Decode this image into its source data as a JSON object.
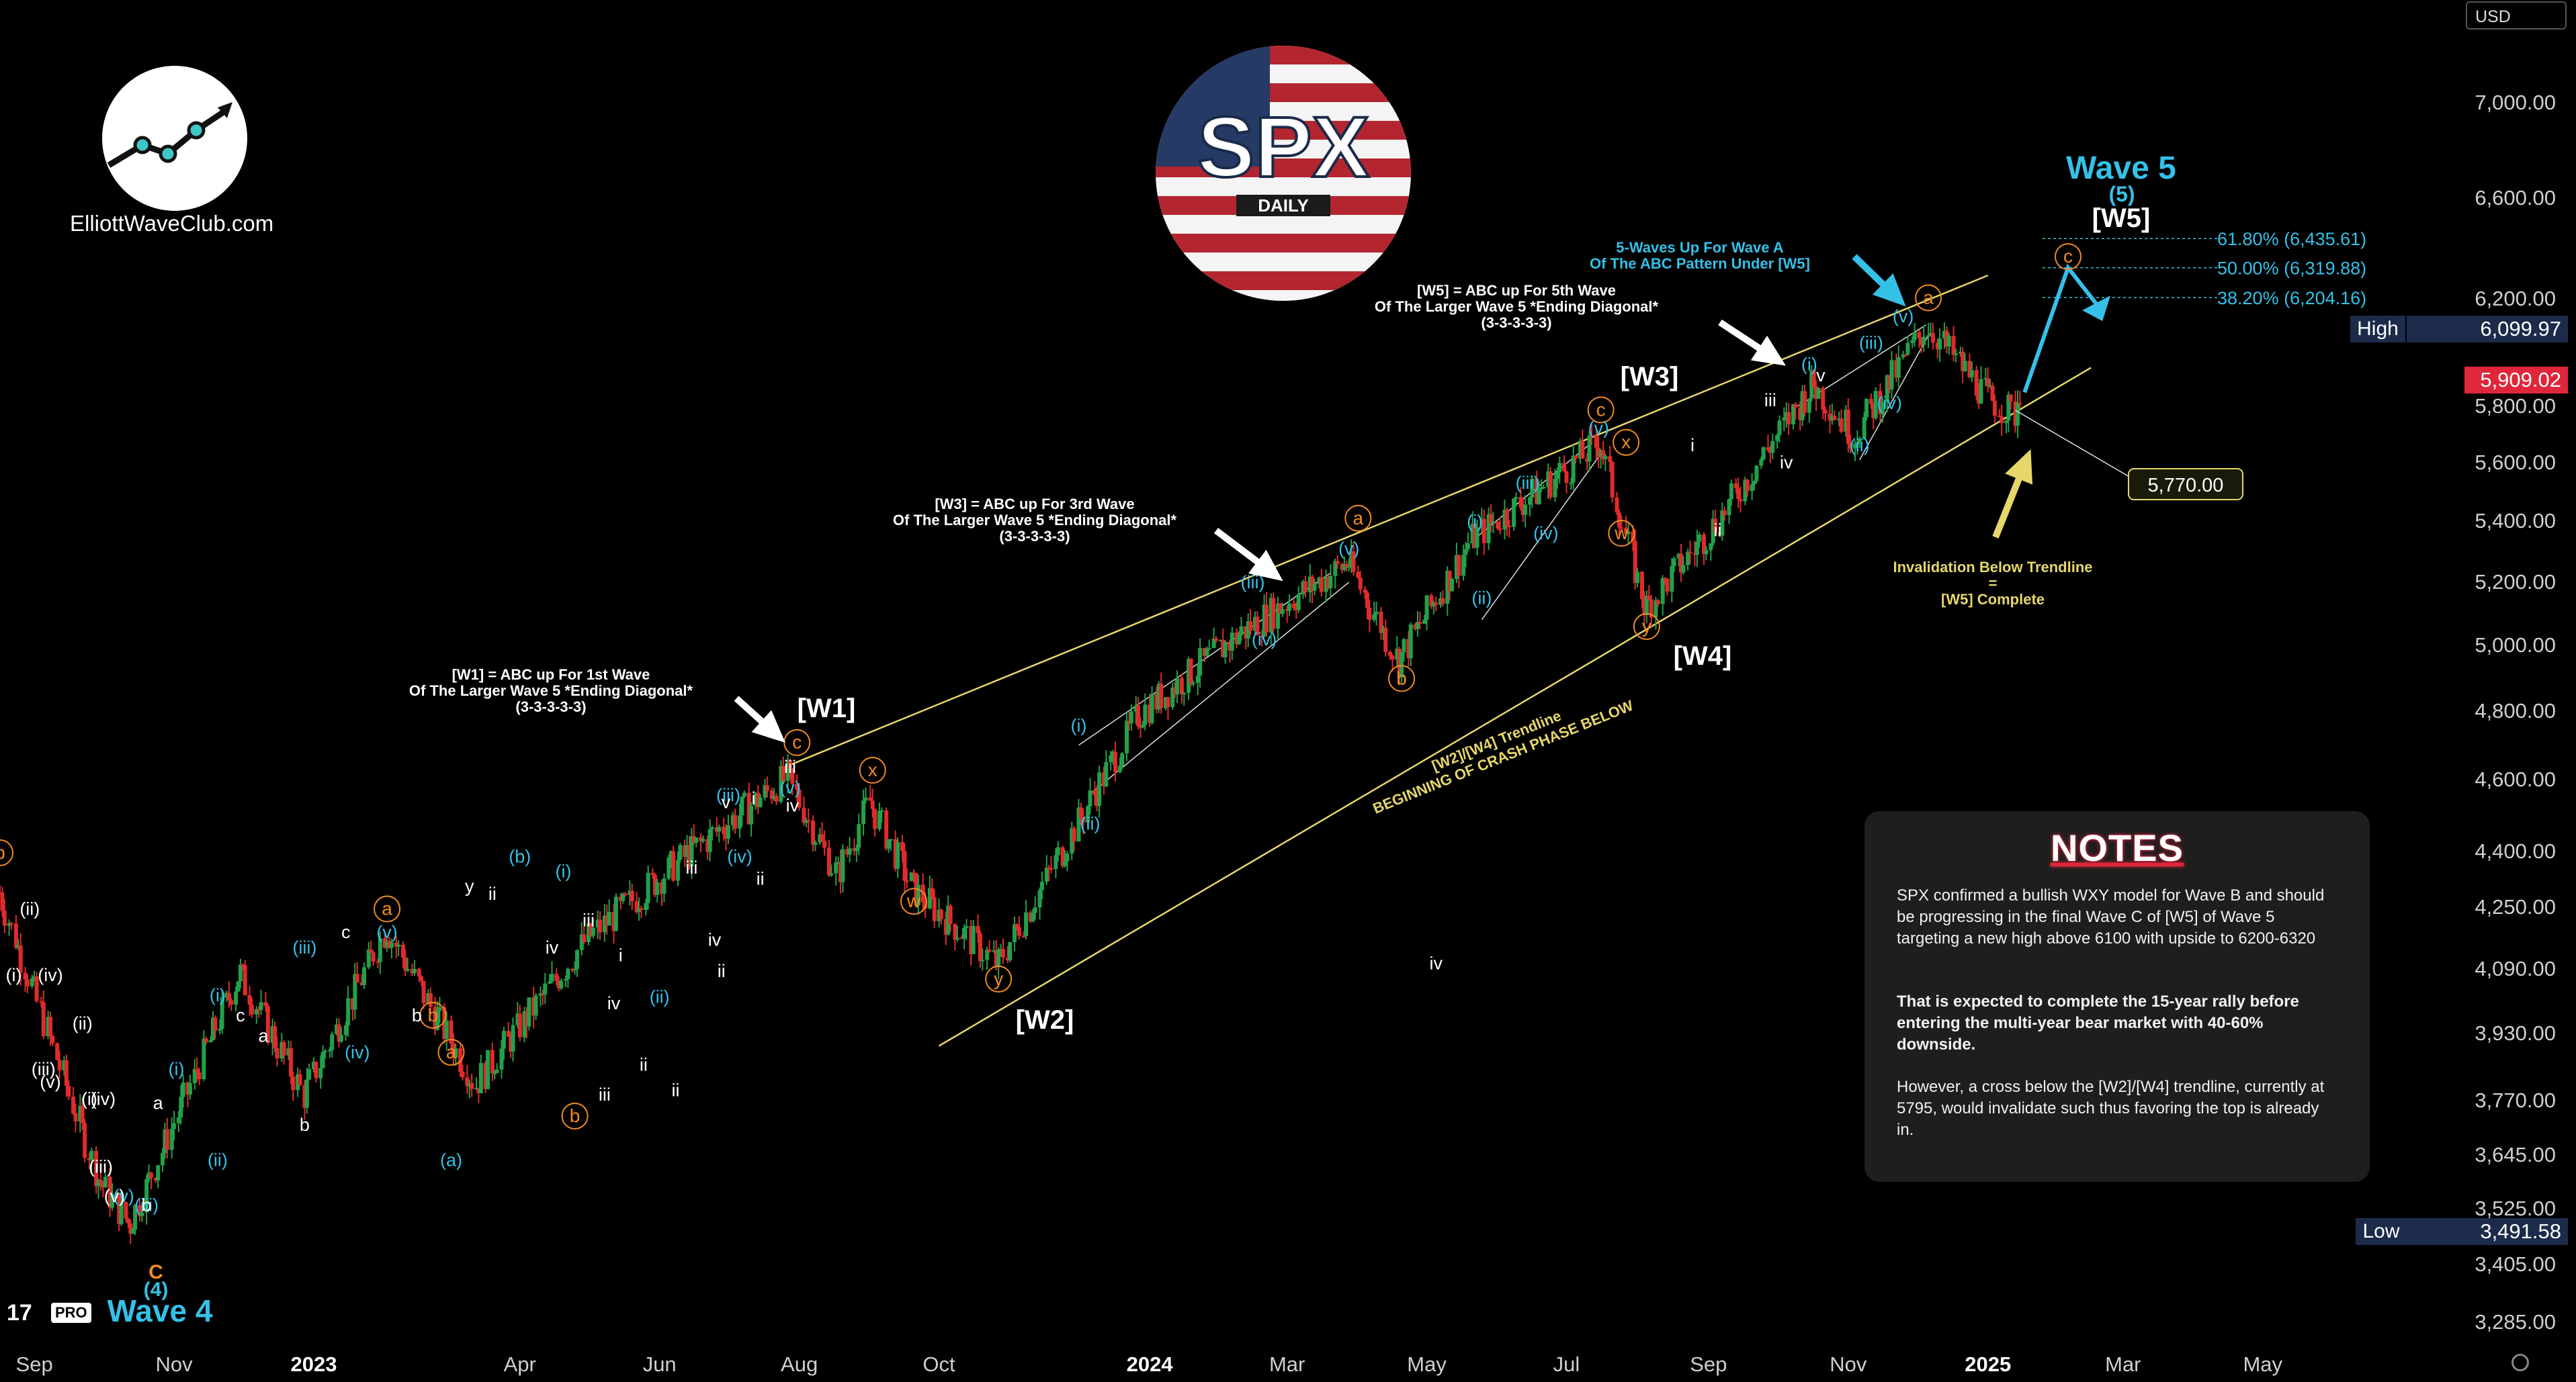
{
  "currency": "USD",
  "brand": {
    "site": "ElliottWaveClub.com",
    "platform_badge": "PRO",
    "ticker_logo": "SPX",
    "timeframe_logo": "DAILY",
    "colors": {
      "orange": "#f08a24",
      "cyan": "#35c0e8",
      "yellow": "#e6d76a",
      "red": "#e0263a",
      "navy": "#1c2b4a"
    }
  },
  "price_axis": {
    "labels": [
      "7,000.00",
      "6,600.00",
      "6,200.00",
      "5,800.00",
      "5,600.00",
      "5,400.00",
      "5,200.00",
      "5,000.00",
      "4,800.00",
      "4,600.00",
      "4,400.00",
      "4,250.00",
      "4,090.00",
      "3,930.00",
      "3,770.00",
      "3,645.00",
      "3,525.00",
      "3,405.00",
      "3,285.00"
    ],
    "high_label": "High",
    "high_value": "6,099.97",
    "low_label": "Low",
    "low_value": "3,491.58",
    "current_value": "5,909.02"
  },
  "time_axis": {
    "labels": [
      "Sep",
      "Nov",
      "2023",
      "Apr",
      "Jun",
      "Aug",
      "Oct",
      "2024",
      "Mar",
      "May",
      "Jul",
      "Sep",
      "Nov",
      "2025",
      "Mar",
      "May"
    ],
    "bold": [
      "2023",
      "2024",
      "2025"
    ]
  },
  "chart_data": {
    "type": "candlestick",
    "title": "SPX",
    "subtitle": "DAILY",
    "y_scale": "log",
    "ylim": [
      3230,
      7400
    ],
    "x_range": [
      "2022-08-17",
      "2025-05-31"
    ],
    "swing_path": [
      [
        "2022-08-17",
        4290
      ],
      [
        "2022-09-30",
        3585
      ],
      [
        "2022-10-13",
        3491.58
      ],
      [
        "2022-11-30",
        4080
      ],
      [
        "2022-12-28",
        3783
      ],
      [
        "2023-02-02",
        4195
      ],
      [
        "2023-03-13",
        3808
      ],
      [
        "2023-05-01",
        4170
      ],
      [
        "2023-06-15",
        4400
      ],
      [
        "2023-07-27",
        4607
      ],
      [
        "2023-08-18",
        4335
      ],
      [
        "2023-09-01",
        4540
      ],
      [
        "2023-09-20",
        4300
      ],
      [
        "2023-10-27",
        4103
      ],
      [
        "2023-12-28",
        4793
      ],
      [
        "2024-02-12",
        5048
      ],
      [
        "2024-03-28",
        5264
      ],
      [
        "2024-04-19",
        4953
      ],
      [
        "2024-05-21",
        5341
      ],
      [
        "2024-06-19",
        5505
      ],
      [
        "2024-07-16",
        5669
      ],
      [
        "2024-08-05",
        5119
      ],
      [
        "2024-09-06",
        5408
      ],
      [
        "2024-10-17",
        5878
      ],
      [
        "2024-11-04",
        5696
      ],
      [
        "2024-12-06",
        6099.97
      ],
      [
        "2025-01-02",
        5825
      ],
      [
        "2025-01-13",
        5773
      ],
      [
        "2025-01-17",
        5909.02
      ]
    ],
    "upper_trendline": [
      [
        "2023-07-27",
        4640
      ],
      [
        "2025-01-01",
        6290
      ]
    ],
    "lower_trendline": [
      [
        "2023-10-01",
        3900
      ],
      [
        "2025-02-15",
        5940
      ]
    ],
    "projection": [
      [
        "2025-01-17",
        5850
      ],
      [
        "2025-02-05",
        6320
      ],
      [
        "2025-02-20",
        6150
      ]
    ],
    "fib_levels": [
      {
        "label": "61.80% (6,435.61)",
        "value": 6435.61
      },
      {
        "label": "50.00% (6,319.88)",
        "value": 6319.88
      },
      {
        "label": "38.20% (6,204.16)",
        "value": 6204.16
      }
    ],
    "target_marker": {
      "label": "5,770.00",
      "value": 5770
    }
  },
  "annotations": {
    "wave4": "Wave 4",
    "wave4_sub": "(4)",
    "wave4_c": "C",
    "wave5": "Wave 5",
    "wave5_sub": "(5)",
    "w1": "[W1]",
    "w2": "[W2]",
    "w3": "[W3]",
    "w4": "[W4]",
    "w5": "[W5]",
    "w1_note": [
      "[W1] = ABC up For 1st Wave",
      "Of The Larger Wave 5 *Ending Diagonal*",
      "(3-3-3-3-3)"
    ],
    "w3_note": [
      "[W3] = ABC up For 3rd Wave",
      "Of The Larger Wave 5 *Ending Diagonal*",
      "(3-3-3-3-3)"
    ],
    "w5_note": [
      "[W5] = ABC up For 5th Wave",
      "Of The Larger Wave 5 *Ending Diagonal*",
      "(3-3-3-3-3)"
    ],
    "wave_a_note": [
      "5-Waves Up For Wave A",
      "Of The ABC Pattern Under [W5]"
    ],
    "trendline_note": [
      "[W2]/[W4] Trendline",
      "BEGINNING OF CRASH PHASE BELOW"
    ],
    "invalidation_note": [
      "Invalidation Below Trendline",
      "=",
      "[W5] Complete"
    ],
    "labels_orange": [
      {
        "t": "a",
        "d": "2023-02-02",
        "v": 4230
      },
      {
        "t": "b",
        "d": "2023-02-22",
        "v": 3960
      },
      {
        "t": "a",
        "d": "2023-03-02",
        "v": 3870
      },
      {
        "t": "c",
        "d": "2023-07-31",
        "v": 4690
      },
      {
        "t": "x",
        "d": "2023-09-02",
        "v": 4610
      },
      {
        "t": "w",
        "d": "2023-09-20",
        "v": 4250
      },
      {
        "t": "y",
        "d": "2023-10-27",
        "v": 4050
      },
      {
        "t": "a",
        "d": "2024-04-01",
        "v": 5390
      },
      {
        "t": "b",
        "d": "2024-04-20",
        "v": 4880
      },
      {
        "t": "c",
        "d": "2024-07-16",
        "v": 5765
      },
      {
        "t": "x",
        "d": "2024-07-27",
        "v": 5650
      },
      {
        "t": "w",
        "d": "2024-07-25",
        "v": 5340
      },
      {
        "t": "y",
        "d": "2024-08-05",
        "v": 5040
      },
      {
        "t": "a",
        "d": "2024-12-06",
        "v": 6180
      },
      {
        "t": "c",
        "d": "2025-02-05",
        "v": 6340
      },
      {
        "t": "b",
        "d": "2023-04-25",
        "v": 3720
      },
      {
        "t": "b",
        "d": "2022-08-17",
        "v": 4380
      }
    ],
    "labels_cyan": [
      {
        "t": "(v)",
        "d": "2023-07-28",
        "v": 4560
      },
      {
        "t": "(iii)",
        "d": "2023-07-01",
        "v": 4540
      },
      {
        "t": "(iv)",
        "d": "2023-07-06",
        "v": 4370
      },
      {
        "t": "(ii)",
        "d": "2023-06-01",
        "v": 4005
      },
      {
        "t": "(i)",
        "d": "2023-04-20",
        "v": 4330
      },
      {
        "t": "(b)",
        "d": "2023-04-01",
        "v": 4370
      },
      {
        "t": "(a)",
        "d": "2023-03-02",
        "v": 3620
      },
      {
        "t": "(v)",
        "d": "2023-02-02",
        "v": 4170
      },
      {
        "t": "(iv)",
        "d": "2023-01-20",
        "v": 3870
      },
      {
        "t": "(iii)",
        "d": "2022-12-28",
        "v": 4130
      },
      {
        "t": "(i)",
        "d": "2022-11-20",
        "v": 4010
      },
      {
        "t": "(ii)",
        "d": "2022-11-20",
        "v": 3620
      },
      {
        "t": "(i)",
        "d": "2023-12-01",
        "v": 4740
      },
      {
        "t": "(ii)",
        "d": "2023-12-06",
        "v": 4460
      },
      {
        "t": "(iii)",
        "d": "2024-02-15",
        "v": 5180
      },
      {
        "t": "(iv)",
        "d": "2024-02-20",
        "v": 5000
      },
      {
        "t": "(v)",
        "d": "2024-03-28",
        "v": 5290
      },
      {
        "t": "(i)",
        "d": "2024-05-22",
        "v": 5380
      },
      {
        "t": "(ii)",
        "d": "2024-05-25",
        "v": 5130
      },
      {
        "t": "(iii)",
        "d": "2024-06-14",
        "v": 5510
      },
      {
        "t": "(iv)",
        "d": "2024-06-22",
        "v": 5340
      },
      {
        "t": "(v)",
        "d": "2024-07-15",
        "v": 5700
      },
      {
        "t": "(i)",
        "d": "2024-10-15",
        "v": 5930
      },
      {
        "t": "(ii)",
        "d": "2024-11-06",
        "v": 5640
      },
      {
        "t": "(iii)",
        "d": "2024-11-11",
        "v": 6010
      },
      {
        "t": "(iv)",
        "d": "2024-11-19",
        "v": 5790
      },
      {
        "t": "(v)",
        "d": "2024-11-25",
        "v": 6110
      },
      {
        "t": "(i)",
        "d": "2022-11-02",
        "v": 3830
      },
      {
        "t": "(iii)",
        "d": "2022-10-20",
        "v": 3520
      },
      {
        "t": "(v)",
        "d": "2022-10-10",
        "v": 3540
      }
    ],
    "labels_white": [
      {
        "t": "(ii)",
        "d": "2022-08-30",
        "v": 4230
      },
      {
        "t": "(i)",
        "d": "2022-08-23",
        "v": 4060
      },
      {
        "t": "(iv)",
        "d": "2022-09-08",
        "v": 4060
      },
      {
        "t": "(ii)",
        "d": "2022-09-22",
        "v": 3940
      },
      {
        "t": "(iii)",
        "d": "2022-09-05",
        "v": 3830
      },
      {
        "t": "(v)",
        "d": "2022-09-08",
        "v": 3800
      },
      {
        "t": "(i)",
        "d": "2022-09-25",
        "v": 3760
      },
      {
        "t": "(iv)",
        "d": "2022-10-01",
        "v": 3760
      },
      {
        "t": "(iii)",
        "d": "2022-09-30",
        "v": 3605
      },
      {
        "t": "(v)",
        "d": "2022-10-06",
        "v": 3540
      },
      {
        "t": "a",
        "d": "2022-10-25",
        "v": 3750
      },
      {
        "t": "b",
        "d": "2022-10-20",
        "v": 3520
      },
      {
        "t": "c",
        "d": "2022-11-30",
        "v": 3960
      },
      {
        "t": "a",
        "d": "2022-12-10",
        "v": 3910
      },
      {
        "t": "b",
        "d": "2022-12-28",
        "v": 3700
      },
      {
        "t": "c",
        "d": "2023-01-15",
        "v": 4170
      },
      {
        "t": "b",
        "d": "2023-02-15",
        "v": 3960
      },
      {
        "t": "i",
        "d": "2023-05-15",
        "v": 4110
      },
      {
        "t": "ii",
        "d": "2023-05-25",
        "v": 3840
      },
      {
        "t": "iii",
        "d": "2023-05-01",
        "v": 4200
      },
      {
        "t": "iv",
        "d": "2023-05-12",
        "v": 3990
      },
      {
        "t": "iii",
        "d": "2023-06-15",
        "v": 4340
      },
      {
        "t": "iv",
        "d": "2023-06-25",
        "v": 4150
      },
      {
        "t": "ii",
        "d": "2023-06-28",
        "v": 4070
      },
      {
        "t": "v",
        "d": "2023-06-30",
        "v": 4520
      },
      {
        "t": "i",
        "d": "2023-07-12",
        "v": 4530
      },
      {
        "t": "ii",
        "d": "2023-07-15",
        "v": 4310
      },
      {
        "t": "iii",
        "d": "2023-07-28",
        "v": 4620
      },
      {
        "t": "iv",
        "d": "2023-07-29",
        "v": 4510
      },
      {
        "t": "y",
        "d": "2023-03-10",
        "v": 4290
      },
      {
        "t": "ii",
        "d": "2023-03-20",
        "v": 4270
      },
      {
        "t": "iv",
        "d": "2023-04-15",
        "v": 4130
      },
      {
        "t": "iii",
        "d": "2023-05-08",
        "v": 3770
      },
      {
        "t": "ii",
        "d": "2023-06-08",
        "v": 3780
      },
      {
        "t": "iii",
        "d": "2024-09-28",
        "v": 5800
      },
      {
        "t": "iv",
        "d": "2024-10-05",
        "v": 5580
      },
      {
        "t": "v",
        "d": "2024-10-20",
        "v": 5890
      },
      {
        "t": "i",
        "d": "2024-08-25",
        "v": 5640
      },
      {
        "t": "ii",
        "d": "2024-09-05",
        "v": 5350
      },
      {
        "t": "iv",
        "d": "2024-05-05",
        "v": 4090
      }
    ]
  },
  "notes": {
    "title": "NOTES",
    "p1": "SPX confirmed a bullish WXY model for Wave B and should be progressing in the final Wave C of [W5] of Wave 5 targeting a new high above 6100 with upside to 6200-6320",
    "p2": "That is expected to complete the 15-year rally before entering the multi-year bear market with 40-60% downside.",
    "p3": "However, a cross below the [W2]/[W4] trendline, currently at 5795, would invalidate such thus favoring the top is already in."
  }
}
